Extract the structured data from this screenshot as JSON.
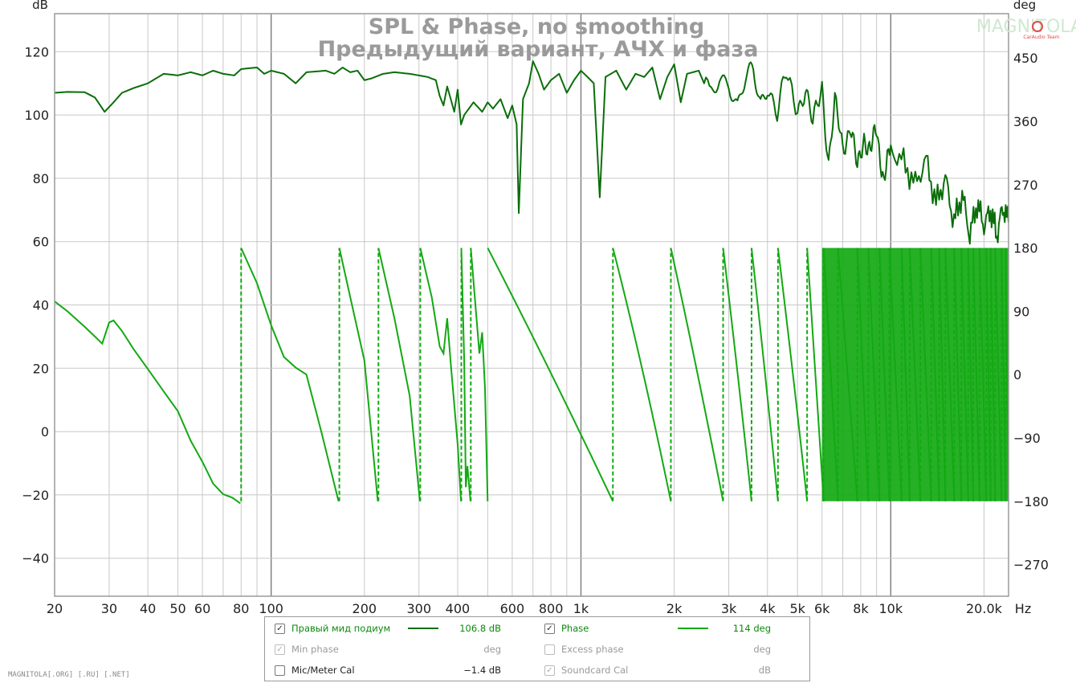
{
  "chart_data": {
    "type": "line",
    "title": "SPL & Phase, no smoothing",
    "subtitle": "Предыдущий вариант, АЧХ и фаза",
    "left_axis_unit": "dB",
    "right_axis_unit": "deg",
    "x_unit": "Hz",
    "x_scale": "log",
    "xlim": [
      20,
      24000
    ],
    "ylim_left": [
      -52,
      132
    ],
    "ylim_right": [
      -315,
      513
    ],
    "grid": true,
    "x_ticks": [
      {
        "v": 20,
        "label": "20"
      },
      {
        "v": 30,
        "label": "30"
      },
      {
        "v": 40,
        "label": "40"
      },
      {
        "v": 50,
        "label": "50"
      },
      {
        "v": 60,
        "label": "60"
      },
      {
        "v": 80,
        "label": "80"
      },
      {
        "v": 100,
        "label": "100"
      },
      {
        "v": 200,
        "label": "200"
      },
      {
        "v": 300,
        "label": "300"
      },
      {
        "v": 400,
        "label": "400"
      },
      {
        "v": 600,
        "label": "600"
      },
      {
        "v": 800,
        "label": "800"
      },
      {
        "v": 1000,
        "label": "1k"
      },
      {
        "v": 2000,
        "label": "2k"
      },
      {
        "v": 3000,
        "label": "3k"
      },
      {
        "v": 4000,
        "label": "4k"
      },
      {
        "v": 5000,
        "label": "5k"
      },
      {
        "v": 6000,
        "label": "6k"
      },
      {
        "v": 8000,
        "label": "8k"
      },
      {
        "v": 10000,
        "label": "10k"
      },
      {
        "v": 20000,
        "label": "20.0k"
      }
    ],
    "y_left_ticks": [
      {
        "v": 120,
        "label": "120"
      },
      {
        "v": 100,
        "label": "100"
      },
      {
        "v": 80,
        "label": "80"
      },
      {
        "v": 60,
        "label": "60"
      },
      {
        "v": 40,
        "label": "40"
      },
      {
        "v": 20,
        "label": "20"
      },
      {
        "v": 0,
        "label": "0"
      },
      {
        "v": -20,
        "label": "−20"
      },
      {
        "v": -40,
        "label": "−40"
      }
    ],
    "y_right_ticks": [
      {
        "v": 450,
        "label": "450"
      },
      {
        "v": 360,
        "label": "360"
      },
      {
        "v": 270,
        "label": "270"
      },
      {
        "v": 180,
        "label": "180"
      },
      {
        "v": 90,
        "label": "90"
      },
      {
        "v": 0,
        "label": "0"
      },
      {
        "v": -90,
        "label": "−90"
      },
      {
        "v": -180,
        "label": "−180"
      },
      {
        "v": -270,
        "label": "−270"
      }
    ],
    "series": [
      {
        "name": "Правый мид подиум",
        "axis": "left",
        "color": "#0a6e0a",
        "points": [
          [
            20,
            107
          ],
          [
            22,
            107.3
          ],
          [
            25,
            107.2
          ],
          [
            27,
            105.5
          ],
          [
            29,
            101
          ],
          [
            31,
            104
          ],
          [
            33,
            107
          ],
          [
            36,
            108.5
          ],
          [
            40,
            110
          ],
          [
            45,
            113
          ],
          [
            50,
            112.5
          ],
          [
            55,
            113.5
          ],
          [
            60,
            112.5
          ],
          [
            65,
            114
          ],
          [
            70,
            113
          ],
          [
            76,
            112.5
          ],
          [
            80,
            114.5
          ],
          [
            90,
            115
          ],
          [
            95,
            113
          ],
          [
            100,
            114
          ],
          [
            110,
            113
          ],
          [
            120,
            110
          ],
          [
            130,
            113.5
          ],
          [
            150,
            114
          ],
          [
            160,
            113
          ],
          [
            170,
            115
          ],
          [
            180,
            113.5
          ],
          [
            190,
            114
          ],
          [
            200,
            111
          ],
          [
            210,
            111.5
          ],
          [
            230,
            113
          ],
          [
            250,
            113.5
          ],
          [
            280,
            113
          ],
          [
            300,
            112.5
          ],
          [
            320,
            112
          ],
          [
            340,
            111
          ],
          [
            350,
            106
          ],
          [
            360,
            103
          ],
          [
            370,
            109
          ],
          [
            380,
            105
          ],
          [
            390,
            101
          ],
          [
            400,
            108
          ],
          [
            410,
            97
          ],
          [
            420,
            100
          ],
          [
            450,
            104
          ],
          [
            480,
            101
          ],
          [
            500,
            104
          ],
          [
            520,
            102
          ],
          [
            550,
            105
          ],
          [
            580,
            99
          ],
          [
            600,
            103
          ],
          [
            620,
            97
          ],
          [
            630,
            69
          ],
          [
            650,
            105
          ],
          [
            680,
            110
          ],
          [
            700,
            117
          ],
          [
            730,
            113
          ],
          [
            760,
            108
          ],
          [
            800,
            111
          ],
          [
            850,
            113
          ],
          [
            900,
            107
          ],
          [
            950,
            111
          ],
          [
            1000,
            114
          ],
          [
            1050,
            112
          ],
          [
            1100,
            110
          ],
          [
            1150,
            74
          ],
          [
            1200,
            112
          ],
          [
            1300,
            114
          ],
          [
            1400,
            108
          ],
          [
            1500,
            113
          ],
          [
            1600,
            112
          ],
          [
            1700,
            115
          ],
          [
            1800,
            105
          ],
          [
            1900,
            112
          ],
          [
            2000,
            116
          ],
          [
            2100,
            104
          ],
          [
            2200,
            113
          ],
          [
            2400,
            114
          ],
          [
            2600,
            106
          ],
          [
            2800,
            113
          ],
          [
            3000,
            112
          ],
          [
            3200,
            102
          ],
          [
            3400,
            110
          ],
          [
            3600,
            113
          ],
          [
            3800,
            104
          ],
          [
            4000,
            111
          ],
          [
            4300,
            100
          ],
          [
            4600,
            112
          ],
          [
            5000,
            103
          ],
          [
            5300,
            108
          ],
          [
            5600,
            96
          ],
          [
            6000,
            110
          ],
          [
            6300,
            85
          ],
          [
            6600,
            103
          ],
          [
            7000,
            90
          ],
          [
            7400,
            97
          ],
          [
            7800,
            82
          ],
          [
            8200,
            94
          ],
          [
            8600,
            88
          ],
          [
            9000,
            95
          ],
          [
            9500,
            80
          ],
          [
            10000,
            89
          ],
          [
            11000,
            85
          ],
          [
            12000,
            78
          ],
          [
            13000,
            86
          ],
          [
            14000,
            72
          ],
          [
            15000,
            80
          ],
          [
            16000,
            66
          ],
          [
            17000,
            75
          ],
          [
            18000,
            62
          ],
          [
            19000,
            72
          ],
          [
            20000,
            65
          ],
          [
            21000,
            70
          ],
          [
            22000,
            62
          ],
          [
            23000,
            71
          ],
          [
            24000,
            66
          ]
        ]
      },
      {
        "name": "Phase",
        "axis": "right",
        "color": "#13a913",
        "points": [
          [
            20,
            104
          ],
          [
            22,
            90
          ],
          [
            25,
            68
          ],
          [
            27,
            54
          ],
          [
            28.5,
            44
          ],
          [
            30,
            74
          ],
          [
            31,
            77
          ],
          [
            33,
            62
          ],
          [
            36,
            36
          ],
          [
            40,
            8
          ],
          [
            45,
            -24
          ],
          [
            50,
            -52
          ],
          [
            55,
            -94
          ],
          [
            60,
            -124
          ],
          [
            65,
            -155
          ],
          [
            70,
            -170
          ],
          [
            75,
            -175
          ],
          [
            79.5,
            -183
          ],
          [
            80,
            180
          ],
          [
            90,
            130
          ],
          [
            100,
            70
          ],
          [
            110,
            25
          ],
          [
            120,
            10
          ],
          [
            130,
            0
          ],
          [
            145,
            -80
          ],
          [
            165,
            -180
          ],
          [
            166,
            180
          ],
          [
            180,
            110
          ],
          [
            200,
            20
          ],
          [
            221,
            -180
          ],
          [
            222,
            180
          ],
          [
            250,
            80
          ],
          [
            280,
            -30
          ],
          [
            302,
            -180
          ],
          [
            303,
            180
          ],
          [
            330,
            110
          ],
          [
            350,
            40
          ],
          [
            360,
            30
          ],
          [
            370,
            80
          ],
          [
            380,
            15
          ],
          [
            400,
            -100
          ],
          [
            410,
            -180
          ],
          [
            411,
            180
          ],
          [
            420,
            20
          ],
          [
            425,
            -160
          ],
          [
            430,
            -130
          ],
          [
            440,
            -180
          ],
          [
            441,
            180
          ],
          [
            470,
            30
          ],
          [
            480,
            60
          ],
          [
            490,
            -20
          ],
          [
            500,
            -180
          ]
        ]
      }
    ]
  },
  "watermark": {
    "brand": "MAGNITOLA",
    "sub": "CarAudio Team"
  },
  "footer_text": "MAGNITOLA[.ORG] [.RU] [.NET]",
  "legend": {
    "rows": [
      {
        "checked": true,
        "label": "Правый мид подиум",
        "value": "106.8 dB",
        "label2_checked": true,
        "label2": "Phase",
        "value2": "114 deg"
      },
      {
        "checked": true,
        "label": "Min phase",
        "value": "deg",
        "label2_checked": false,
        "label2": "Excess phase",
        "value2": "deg"
      },
      {
        "checked": false,
        "label": "Mic/Meter Cal",
        "value": "−1.4 dB",
        "label2_checked": true,
        "label2": "Soundcard Cal",
        "value2": "dB"
      }
    ]
  }
}
